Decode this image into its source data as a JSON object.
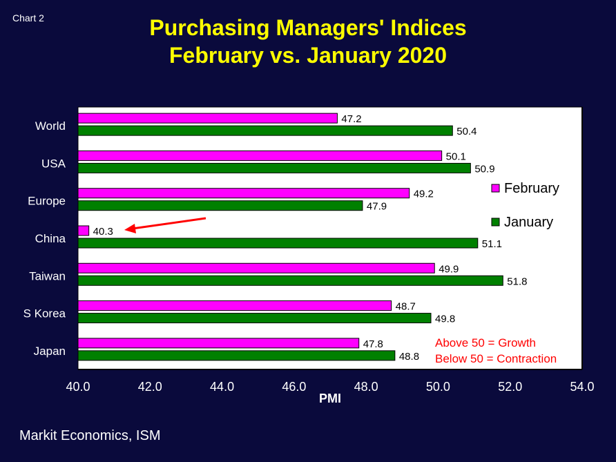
{
  "chart_label": "Chart 2",
  "title_line1": "Purchasing Managers' Indices",
  "title_line2": "February vs. January 2020",
  "source": "Markit Economics, ISM",
  "colors": {
    "background": "#0a0a3c",
    "title": "#ffff00",
    "february": "#ff00ff",
    "january": "#008000",
    "annotation": "#ff0000"
  },
  "chart_data": {
    "type": "bar",
    "orientation": "horizontal",
    "categories": [
      "World",
      "USA",
      "Europe",
      "China",
      "Taiwan",
      "S Korea",
      "Japan"
    ],
    "series": [
      {
        "name": "February",
        "values": [
          47.2,
          50.1,
          49.2,
          40.3,
          49.9,
          48.7,
          47.8
        ]
      },
      {
        "name": "January",
        "values": [
          50.4,
          50.9,
          47.9,
          51.1,
          51.8,
          49.8,
          48.8
        ]
      }
    ],
    "xlabel": "PMI",
    "xlim": [
      40.0,
      54.0
    ],
    "xticks": [
      "40.0",
      "42.0",
      "44.0",
      "46.0",
      "48.0",
      "50.0",
      "52.0",
      "54.0"
    ],
    "legend_placement": "right",
    "grid": false,
    "annotations": [
      "Above 50 = Growth",
      "Below 50 = Contraction"
    ],
    "arrow_points_to": "China"
  }
}
